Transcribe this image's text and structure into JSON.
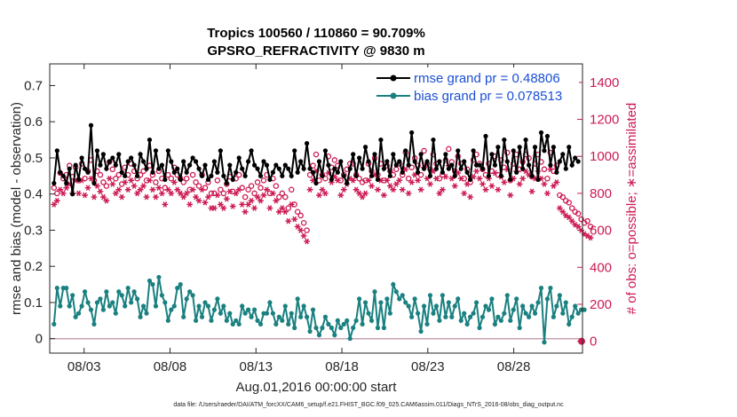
{
  "chart_data": {
    "type": "line",
    "title_line1": "Tropics 100560 / 110860 = 90.709%",
    "title_line2": "GPSRO_REFRACTIVITY @ 9830 m",
    "xlabel": "Aug.01,2016 00:00:00 start",
    "ylabel_left": "rmse and bias (model - observation)",
    "ylabel_right": "# of obs: o=possible; ∗=assimilated",
    "footnote": "data file: /Users/raeder/DAI/ATM_forcXX/CAM6_setup/f.e21.FHIST_BGC.f09_025.CAM6assim.011/Diags_NTrS_2016-08/obs_diag_output.nc",
    "x_range_days": [
      1.0,
      32.0
    ],
    "ylim_left": [
      -0.04,
      0.76
    ],
    "ylim_right": [
      -64,
      1500
    ],
    "x_ticks": [
      {
        "day": 3,
        "label": "08/03"
      },
      {
        "day": 8,
        "label": "08/08"
      },
      {
        "day": 13,
        "label": "08/13"
      },
      {
        "day": 18,
        "label": "08/18"
      },
      {
        "day": 23,
        "label": "08/23"
      },
      {
        "day": 28,
        "label": "08/28"
      }
    ],
    "y_ticks_left": [
      "0",
      "0.1",
      "0.2",
      "0.3",
      "0.4",
      "0.5",
      "0.6",
      "0.7"
    ],
    "y_ticks_right": [
      "0",
      "200",
      "400",
      "600",
      "800",
      "1000",
      "1200",
      "1400"
    ],
    "legend": [
      {
        "label": "rmse grand pr = 0.48806",
        "color": "#000000"
      },
      {
        "label": "bias grand pr = 0.078513",
        "color": "#1a8080"
      }
    ],
    "colors": {
      "rmse": "#000000",
      "bias": "#1a8080",
      "obs": "#cc1a52",
      "zero_line": "#c9a3b5"
    },
    "series": [
      {
        "name": "rmse",
        "values": [
          0.43,
          0.52,
          0.46,
          0.45,
          0.43,
          0.47,
          0.4,
          0.48,
          0.44,
          0.5,
          0.47,
          0.46,
          0.59,
          0.43,
          0.52,
          0.48,
          0.51,
          0.47,
          0.49,
          0.5,
          0.48,
          0.51,
          0.46,
          0.45,
          0.49,
          0.5,
          0.48,
          0.45,
          0.51,
          0.49,
          0.47,
          0.55,
          0.46,
          0.52,
          0.47,
          0.48,
          0.44,
          0.52,
          0.49,
          0.46,
          0.47,
          0.44,
          0.49,
          0.46,
          0.48,
          0.5,
          0.49,
          0.47,
          0.45,
          0.48,
          0.44,
          0.45,
          0.49,
          0.46,
          0.52,
          0.45,
          0.43,
          0.48,
          0.44,
          0.46,
          0.5,
          0.47,
          0.45,
          0.49,
          0.52,
          0.48,
          0.47,
          0.45,
          0.49,
          0.48,
          0.44,
          0.46,
          0.48,
          0.47,
          0.45,
          0.48,
          0.47,
          0.45,
          0.52,
          0.46,
          0.49,
          0.47,
          0.54,
          0.47,
          0.46,
          0.43,
          0.49,
          0.45,
          0.52,
          0.48,
          0.44,
          0.47,
          0.46,
          0.49,
          0.45,
          0.43,
          0.47,
          0.51,
          0.45,
          0.5,
          0.47,
          0.53,
          0.49,
          0.45,
          0.51,
          0.44,
          0.55,
          0.47,
          0.49,
          0.45,
          0.51,
          0.48,
          0.49,
          0.46,
          0.52,
          0.48,
          0.57,
          0.49,
          0.46,
          0.51,
          0.47,
          0.49,
          0.45,
          0.55,
          0.47,
          0.49,
          0.46,
          0.51,
          0.47,
          0.48,
          0.45,
          0.52,
          0.47,
          0.49,
          0.46,
          0.44,
          0.52,
          0.48,
          0.48,
          0.47,
          0.56,
          0.45,
          0.51,
          0.48,
          0.53,
          0.45,
          0.55,
          0.49,
          0.44,
          0.52,
          0.46,
          0.53,
          0.47,
          0.55,
          0.48,
          0.45,
          0.53,
          0.44,
          0.57,
          0.52,
          0.56,
          0.48,
          0.53,
          0.46,
          0.49,
          0.51,
          0.47,
          0.53,
          0.48,
          0.5,
          0.49
        ]
      },
      {
        "name": "bias",
        "values": [
          0.04,
          0.14,
          0.09,
          0.14,
          0.14,
          0.09,
          0.12,
          0.06,
          0.07,
          0.09,
          0.13,
          0.1,
          0.08,
          0.04,
          0.1,
          0.11,
          0.08,
          0.13,
          0.09,
          0.1,
          0.07,
          0.13,
          0.12,
          0.09,
          0.14,
          0.1,
          0.13,
          0.11,
          0.06,
          0.09,
          0.07,
          0.16,
          0.15,
          0.09,
          0.17,
          0.12,
          0.1,
          0.05,
          0.08,
          0.09,
          0.14,
          0.15,
          0.06,
          0.11,
          0.13,
          0.12,
          0.05,
          0.09,
          0.06,
          0.1,
          0.09,
          0.05,
          0.08,
          0.11,
          0.07,
          0.09,
          0.05,
          0.07,
          0.04,
          0.05,
          0.04,
          0.09,
          0.07,
          0.08,
          0.06,
          0.08,
          0.05,
          0.04,
          0.07,
          0.07,
          0.1,
          0.07,
          0.04,
          0.06,
          0.05,
          0.09,
          0.04,
          0.07,
          0.03,
          0.11,
          0.06,
          0.09,
          0.06,
          0.02,
          0.08,
          0.03,
          0.01,
          0.03,
          0.06,
          0.04,
          0.03,
          0.01,
          0.05,
          0.03,
          0.04,
          0.05,
          0.0,
          0.03,
          0.05,
          0.11,
          0.04,
          0.1,
          0.07,
          0.05,
          0.13,
          0.03,
          0.1,
          0.03,
          0.11,
          0.07,
          0.15,
          0.13,
          0.11,
          0.12,
          0.1,
          0.09,
          0.06,
          0.11,
          0.07,
          0.02,
          0.09,
          0.04,
          0.12,
          0.07,
          0.09,
          0.05,
          0.12,
          0.06,
          0.1,
          0.06,
          0.09,
          0.11,
          0.05,
          0.07,
          0.04,
          0.06,
          0.07,
          0.1,
          0.03,
          0.06,
          0.09,
          0.08,
          0.11,
          0.04,
          0.06,
          0.05,
          0.07,
          0.12,
          0.05,
          0.08,
          0.11,
          0.03,
          0.09,
          0.07,
          0.06,
          0.09,
          0.07,
          0.1,
          0.14,
          -0.01,
          0.11,
          0.14,
          0.06,
          0.09,
          0.12,
          0.07,
          0.1,
          0.04,
          0.06,
          0.09,
          0.07,
          0.08,
          0.08
        ]
      },
      {
        "name": "obs_possible",
        "values": [
          830,
          800,
          910,
          880,
          900,
          950,
          890,
          940,
          870,
          960,
          880,
          920,
          980,
          870,
          920,
          900,
          860,
          840,
          970,
          930,
          880,
          900,
          850,
          940,
          900,
          960,
          920,
          880,
          900,
          920,
          870,
          950,
          900,
          860,
          920,
          880,
          830,
          900,
          880,
          940,
          900,
          880,
          860,
          880,
          820,
          900,
          860,
          840,
          900,
          830,
          860,
          800,
          800,
          870,
          820,
          800,
          850,
          890,
          810,
          880,
          900,
          830,
          780,
          820,
          840,
          800,
          860,
          830,
          870,
          900,
          800,
          880,
          840,
          780,
          800,
          780,
          720,
          820,
          740,
          700,
          680,
          640,
          600,
          900,
          950,
          1010,
          870,
          900,
          880,
          1000,
          940,
          980,
          950,
          870,
          900,
          930,
          960,
          960,
          900,
          880,
          860,
          870,
          960,
          920,
          990,
          900,
          960,
          870,
          950,
          920,
          900,
          930,
          960,
          900,
          1020,
          880,
          940,
          990,
          950,
          900,
          1030,
          960,
          930,
          1010,
          960,
          880,
          900,
          980,
          1040,
          970,
          920,
          1000,
          960,
          880,
          930,
          860,
          980,
          1010,
          960,
          930,
          900,
          960,
          920,
          1000,
          900,
          980,
          940,
          1020,
          870,
          960,
          1010,
          930,
          970,
          1010,
          990,
          890,
          960,
          1010,
          970,
          930,
          880,
          1020,
          920,
          950,
          790,
          780,
          760,
          750,
          720,
          700,
          690,
          660,
          640,
          650,
          620
        ]
      },
      {
        "name": "obs_assimilated",
        "values": [
          740,
          760,
          820,
          800,
          830,
          850,
          800,
          870,
          800,
          870,
          790,
          830,
          880,
          780,
          840,
          810,
          780,
          760,
          880,
          850,
          800,
          820,
          780,
          860,
          820,
          870,
          840,
          800,
          820,
          840,
          780,
          870,
          820,
          780,
          830,
          800,
          740,
          820,
          800,
          860,
          820,
          800,
          780,
          800,
          740,
          820,
          780,
          760,
          820,
          750,
          780,
          720,
          720,
          790,
          740,
          720,
          770,
          810,
          730,
          800,
          820,
          740,
          700,
          740,
          760,
          720,
          780,
          760,
          790,
          820,
          720,
          800,
          760,
          700,
          720,
          700,
          650,
          740,
          660,
          620,
          600,
          570,
          540,
          820,
          870,
          920,
          790,
          820,
          800,
          910,
          860,
          890,
          870,
          790,
          820,
          850,
          880,
          870,
          820,
          800,
          780,
          800,
          870,
          840,
          900,
          820,
          870,
          790,
          870,
          840,
          820,
          850,
          870,
          820,
          930,
          800,
          860,
          900,
          870,
          820,
          940,
          880,
          850,
          920,
          880,
          800,
          820,
          890,
          950,
          880,
          840,
          910,
          880,
          800,
          850,
          780,
          890,
          920,
          880,
          850,
          820,
          880,
          840,
          910,
          820,
          890,
          860,
          930,
          790,
          880,
          920,
          850,
          880,
          920,
          900,
          810,
          880,
          920,
          880,
          850,
          800,
          930,
          840,
          860,
          720,
          700,
          680,
          670,
          650,
          630,
          620,
          600,
          580,
          570,
          560
        ]
      }
    ]
  }
}
